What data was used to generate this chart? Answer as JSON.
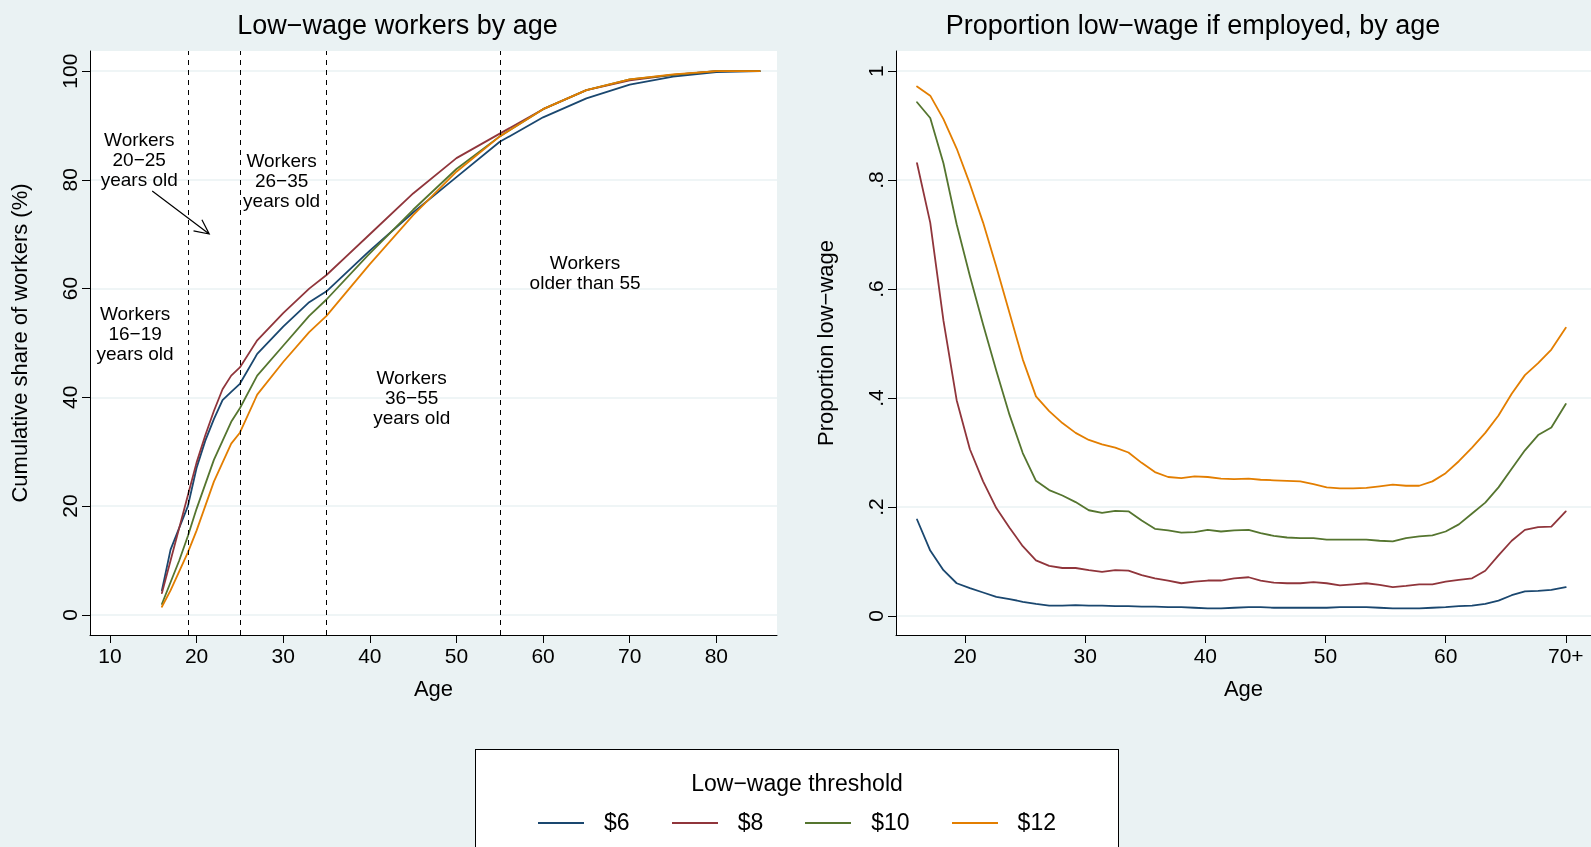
{
  "chart_data": [
    {
      "type": "line",
      "title": "Low−wage workers by age",
      "xlabel": "Age",
      "ylabel": "Cumulative share of workers (%)",
      "legend_title": "Low−wage threshold",
      "legend": "bottom",
      "grid": "y",
      "marker": "none",
      "line_style": "solid",
      "xlim": [
        7.7,
        87
      ],
      "xticks": [
        10,
        20,
        30,
        40,
        50,
        60,
        70,
        80
      ],
      "ylim": [
        -3.7,
        103.7
      ],
      "yticks": [
        0,
        20,
        40,
        60,
        80,
        100
      ],
      "x": [
        16,
        17,
        18,
        19,
        20,
        21,
        22,
        23,
        24,
        25,
        27,
        30,
        33,
        35,
        40,
        45,
        50,
        55,
        60,
        65,
        70,
        75,
        80,
        85
      ],
      "series": [
        {
          "name": "$6",
          "color": "#1a476f",
          "values": [
            4.5,
            12,
            16,
            20,
            27,
            32,
            36,
            39.5,
            41,
            42.5,
            48,
            53,
            57.5,
            59.5,
            67,
            74,
            80.5,
            87,
            91.5,
            95,
            97.5,
            99,
            99.8,
            100
          ]
        },
        {
          "name": "$8",
          "color": "#90353b",
          "values": [
            4,
            10,
            16,
            22,
            28,
            33,
            37.5,
            41.5,
            44,
            45.5,
            50.5,
            55.5,
            60,
            62.5,
            70,
            77.5,
            84,
            88.5,
            93,
            96.5,
            98.3,
            99.3,
            100,
            100
          ]
        },
        {
          "name": "$10",
          "color": "#55752f",
          "values": [
            2,
            6,
            10,
            14.5,
            19.5,
            24,
            28.5,
            32,
            35.5,
            38,
            44,
            49.5,
            55,
            58,
            66.5,
            74.5,
            82,
            88,
            93,
            96.5,
            98.5,
            99.3,
            100,
            100
          ]
        },
        {
          "name": "$12",
          "color": "#e37e00",
          "values": [
            1.5,
            4.5,
            8,
            11.5,
            15.5,
            20,
            24.5,
            28,
            31.5,
            33.5,
            40.5,
            46.5,
            52,
            55,
            64.5,
            73.5,
            81.5,
            88,
            93,
            96.5,
            98.5,
            99.4,
            100,
            100
          ]
        }
      ],
      "ref_lines": [
        {
          "axis": "x",
          "value": 19,
          "color": "#000000",
          "line_style": "dashed"
        },
        {
          "axis": "x",
          "value": 25,
          "color": "#000000",
          "line_style": "dashed"
        },
        {
          "axis": "x",
          "value": 35,
          "color": "#000000",
          "line_style": "dashed"
        },
        {
          "axis": "x",
          "value": 55,
          "color": "#000000",
          "line_style": "dashed"
        }
      ],
      "annotations": [
        "Workers\n20−25\nyears old",
        "Workers\n16−19\nyears old",
        "Workers\n26−35\nyears old",
        "Workers\n36−55\nyears old",
        "Workers\nolder than 55"
      ]
    },
    {
      "type": "line",
      "title": "Proportion low−wage if employed, by age",
      "xlabel": "Age",
      "ylabel": "Proportion low−wage",
      "legend": "bottom",
      "grid": "y",
      "marker": "none",
      "line_style": "solid",
      "xlim": [
        14.25,
        72.1
      ],
      "xticks": [
        20,
        30,
        40,
        50,
        60,
        {
          "value": 70,
          "label": "70+"
        }
      ],
      "ylim": [
        -0.035,
        1.037
      ],
      "yticks": [
        0,
        {
          "value": 0.2,
          "label": ".2"
        },
        {
          "value": 0.4,
          "label": ".4"
        },
        {
          "value": 0.6,
          "label": ".6"
        },
        {
          "value": 0.8,
          "label": ".8"
        },
        1
      ],
      "x": [
        16,
        17.1,
        18.2,
        19.3,
        20.4,
        21.5,
        22.6,
        23.7,
        24.8,
        25.9,
        27,
        28.1,
        29.2,
        30.3,
        31.4,
        32.5,
        33.6,
        34.7,
        35.8,
        36.9,
        38,
        39.1,
        40.2,
        41.3,
        42.4,
        43.6,
        44.6,
        45.7,
        46.8,
        47.9,
        49,
        50.1,
        51.2,
        52.3,
        53.4,
        54.5,
        55.6,
        56.7,
        57.8,
        58.9,
        60,
        61.1,
        62.2,
        63.3,
        64.4,
        65.5,
        66.6,
        67.7,
        68.8,
        70
      ],
      "series": [
        {
          "name": "$6",
          "color": "#1a476f",
          "values": [
            0.177,
            0.12,
            0.084,
            0.06,
            0.051,
            0.043,
            0.035,
            0.031,
            0.026,
            0.022,
            0.019,
            0.019,
            0.02,
            0.019,
            0.019,
            0.018,
            0.018,
            0.017,
            0.017,
            0.016,
            0.016,
            0.015,
            0.014,
            0.014,
            0.015,
            0.016,
            0.016,
            0.015,
            0.015,
            0.015,
            0.015,
            0.015,
            0.016,
            0.016,
            0.016,
            0.015,
            0.014,
            0.014,
            0.014,
            0.015,
            0.016,
            0.018,
            0.019,
            0.022,
            0.028,
            0.038,
            0.045,
            0.046,
            0.048,
            0.053
          ]
        },
        {
          "name": "$8",
          "color": "#90353b",
          "values": [
            0.831,
            0.722,
            0.542,
            0.396,
            0.306,
            0.247,
            0.198,
            0.162,
            0.128,
            0.102,
            0.092,
            0.088,
            0.088,
            0.084,
            0.081,
            0.084,
            0.083,
            0.075,
            0.069,
            0.065,
            0.06,
            0.063,
            0.065,
            0.065,
            0.069,
            0.071,
            0.065,
            0.061,
            0.06,
            0.06,
            0.062,
            0.06,
            0.056,
            0.058,
            0.06,
            0.057,
            0.053,
            0.055,
            0.058,
            0.058,
            0.063,
            0.066,
            0.069,
            0.083,
            0.111,
            0.138,
            0.158,
            0.163,
            0.164,
            0.192
          ]
        },
        {
          "name": "$10",
          "color": "#55752f",
          "values": [
            0.943,
            0.914,
            0.831,
            0.719,
            0.624,
            0.535,
            0.45,
            0.369,
            0.299,
            0.248,
            0.231,
            0.221,
            0.209,
            0.194,
            0.189,
            0.193,
            0.192,
            0.175,
            0.16,
            0.157,
            0.153,
            0.154,
            0.158,
            0.155,
            0.157,
            0.158,
            0.152,
            0.147,
            0.144,
            0.143,
            0.143,
            0.14,
            0.14,
            0.14,
            0.14,
            0.138,
            0.137,
            0.143,
            0.146,
            0.148,
            0.155,
            0.168,
            0.188,
            0.208,
            0.236,
            0.27,
            0.304,
            0.332,
            0.346,
            0.389
          ]
        },
        {
          "name": "$12",
          "color": "#e37e00",
          "values": [
            0.972,
            0.955,
            0.912,
            0.858,
            0.793,
            0.722,
            0.641,
            0.556,
            0.471,
            0.403,
            0.376,
            0.354,
            0.336,
            0.323,
            0.315,
            0.309,
            0.3,
            0.281,
            0.264,
            0.255,
            0.253,
            0.256,
            0.255,
            0.252,
            0.251,
            0.252,
            0.25,
            0.249,
            0.248,
            0.247,
            0.242,
            0.236,
            0.234,
            0.234,
            0.235,
            0.238,
            0.241,
            0.239,
            0.239,
            0.247,
            0.262,
            0.284,
            0.309,
            0.336,
            0.368,
            0.408,
            0.442,
            0.464,
            0.489,
            0.529
          ]
        }
      ]
    }
  ]
}
